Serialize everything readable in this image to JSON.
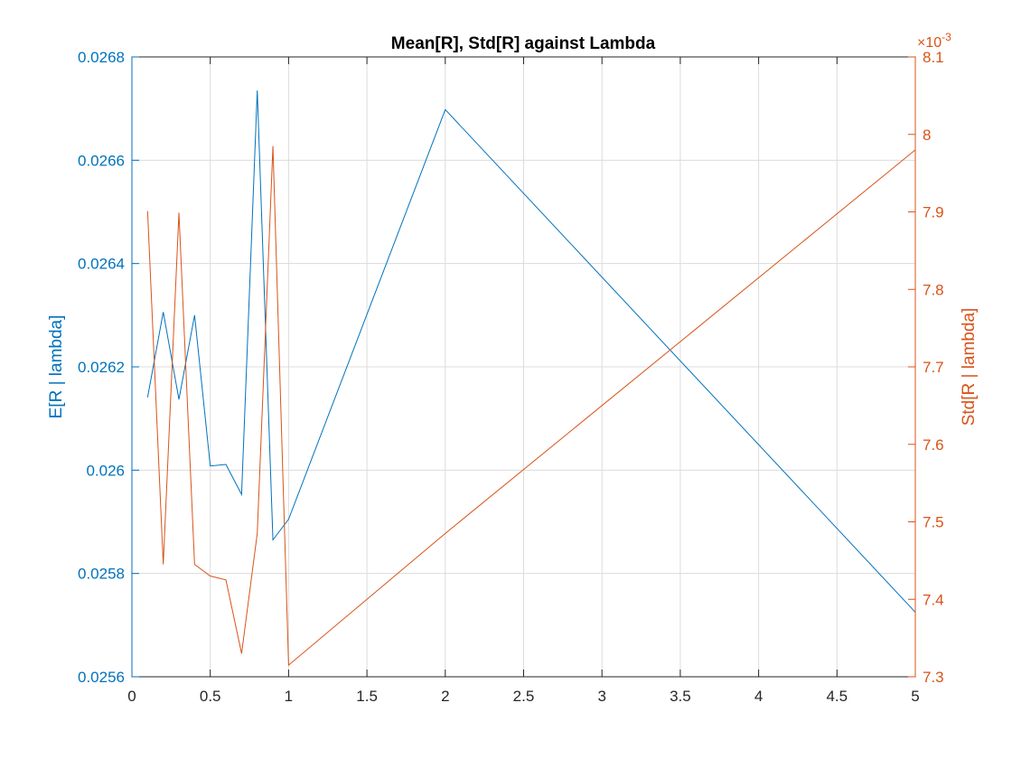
{
  "chart_data": {
    "type": "line",
    "title": "Mean[R], Std[R] against Lambda",
    "xlabel": "",
    "xlim": [
      0,
      5
    ],
    "xticks": [
      0,
      0.5,
      1,
      1.5,
      2,
      2.5,
      3,
      3.5,
      4,
      4.5,
      5
    ],
    "x": [
      0.1,
      0.2,
      0.3,
      0.4,
      0.5,
      0.6,
      0.7,
      0.8,
      0.9,
      1,
      2,
      5
    ],
    "grid": true,
    "y_left": {
      "label": "E[R | lambda]",
      "color": "#0072BD",
      "ylim": [
        0.0256,
        0.0268
      ],
      "ticks": [
        0.0256,
        0.0258,
        0.026,
        0.0262,
        0.0264,
        0.0266,
        0.0268
      ],
      "tick_labels": [
        "0.0256",
        "0.0258",
        "0.026",
        "0.0262",
        "0.0264",
        "0.0266",
        "0.0268"
      ]
    },
    "y_right": {
      "label": "Std[R | lambda]",
      "color": "#D95319",
      "ylim": [
        0.0073,
        0.0081
      ],
      "exponent_label": "×10",
      "exponent_power": "-3",
      "ticks": [
        7.3,
        7.4,
        7.5,
        7.6,
        7.7,
        7.8,
        7.9,
        8.0,
        8.1
      ],
      "tick_labels": [
        "7.3",
        "7.4",
        "7.5",
        "7.6",
        "7.7",
        "7.8",
        "7.9",
        "8",
        "8.1"
      ]
    },
    "series": [
      {
        "axis": "left",
        "color": "#0072BD",
        "values": [
          0.026141,
          0.026306,
          0.026137,
          0.0263,
          0.026008,
          0.026011,
          0.025953,
          0.026735,
          0.025865,
          0.025905,
          0.026698,
          0.025725
        ]
      },
      {
        "axis": "right",
        "color": "#D95319",
        "values": [
          0.007901,
          0.007445,
          0.007899,
          0.007445,
          0.00743,
          0.007425,
          0.00733,
          0.007485,
          0.007985,
          0.007315,
          0.007485,
          0.00798
        ]
      }
    ]
  }
}
